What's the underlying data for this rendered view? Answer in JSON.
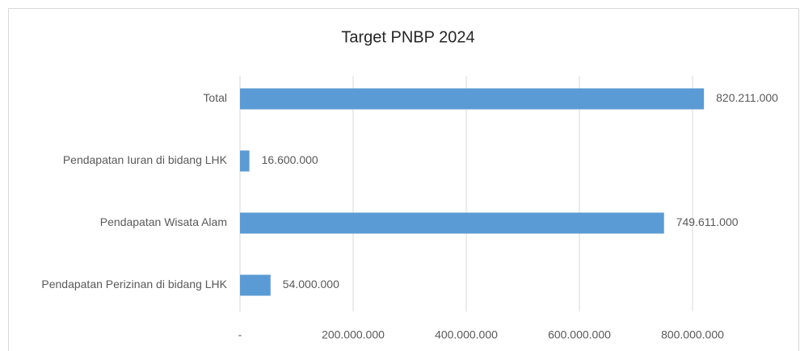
{
  "chart_data": {
    "type": "bar",
    "orientation": "horizontal",
    "title": "Target PNBP 2024",
    "categories": [
      "Total",
      "Pendapatan Iuran di bidang LHK",
      "Pendapatan Wisata Alam",
      "Pendapatan Perizinan di bidang LHK"
    ],
    "values": [
      820211000,
      16600000,
      749611000,
      54000000
    ],
    "value_labels": [
      "820.211.000",
      "16.600.000",
      "749.611.000",
      "54.000.000"
    ],
    "color": "#5b9bd5",
    "xlim": [
      0,
      900000000
    ],
    "xticks": [
      {
        "value": 0,
        "label": "-"
      },
      {
        "value": 200000000,
        "label": "200.000.000"
      },
      {
        "value": 400000000,
        "label": "400.000.000"
      },
      {
        "value": 600000000,
        "label": "600.000.000"
      },
      {
        "value": 800000000,
        "label": "800.000.000"
      }
    ],
    "grid": true
  }
}
